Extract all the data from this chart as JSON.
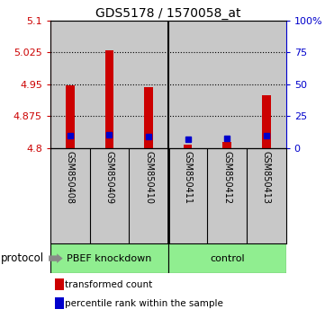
{
  "title": "GDS5178 / 1570058_at",
  "samples": [
    "GSM850408",
    "GSM850409",
    "GSM850410",
    "GSM850411",
    "GSM850412",
    "GSM850413"
  ],
  "red_values": [
    4.947,
    5.03,
    4.943,
    4.807,
    4.815,
    4.924
  ],
  "blue_values": [
    4.828,
    4.83,
    4.826,
    4.821,
    4.822,
    4.828
  ],
  "ymin": 4.8,
  "ymax": 5.1,
  "yticks": [
    4.8,
    4.875,
    4.95,
    5.025,
    5.1
  ],
  "ytick_labels": [
    "4.8",
    "4.875",
    "4.95",
    "5.025",
    "5.1"
  ],
  "right_yticks": [
    0,
    25,
    50,
    75,
    100
  ],
  "right_ytick_labels": [
    "0",
    "25",
    "50",
    "75",
    "100%"
  ],
  "red_color": "#cc0000",
  "blue_color": "#0000cc",
  "left_axis_color": "#cc0000",
  "right_axis_color": "#0000cc",
  "group1_label": "PBEF knockdown",
  "group2_label": "control",
  "protocol_label": "protocol",
  "legend_red": "transformed count",
  "legend_blue": "percentile rank within the sample",
  "separator_idx": 3,
  "n_samples": 6,
  "sample_bg_color": "#c8c8c8",
  "group_green": "#90EE90",
  "bar_width": 0.22
}
